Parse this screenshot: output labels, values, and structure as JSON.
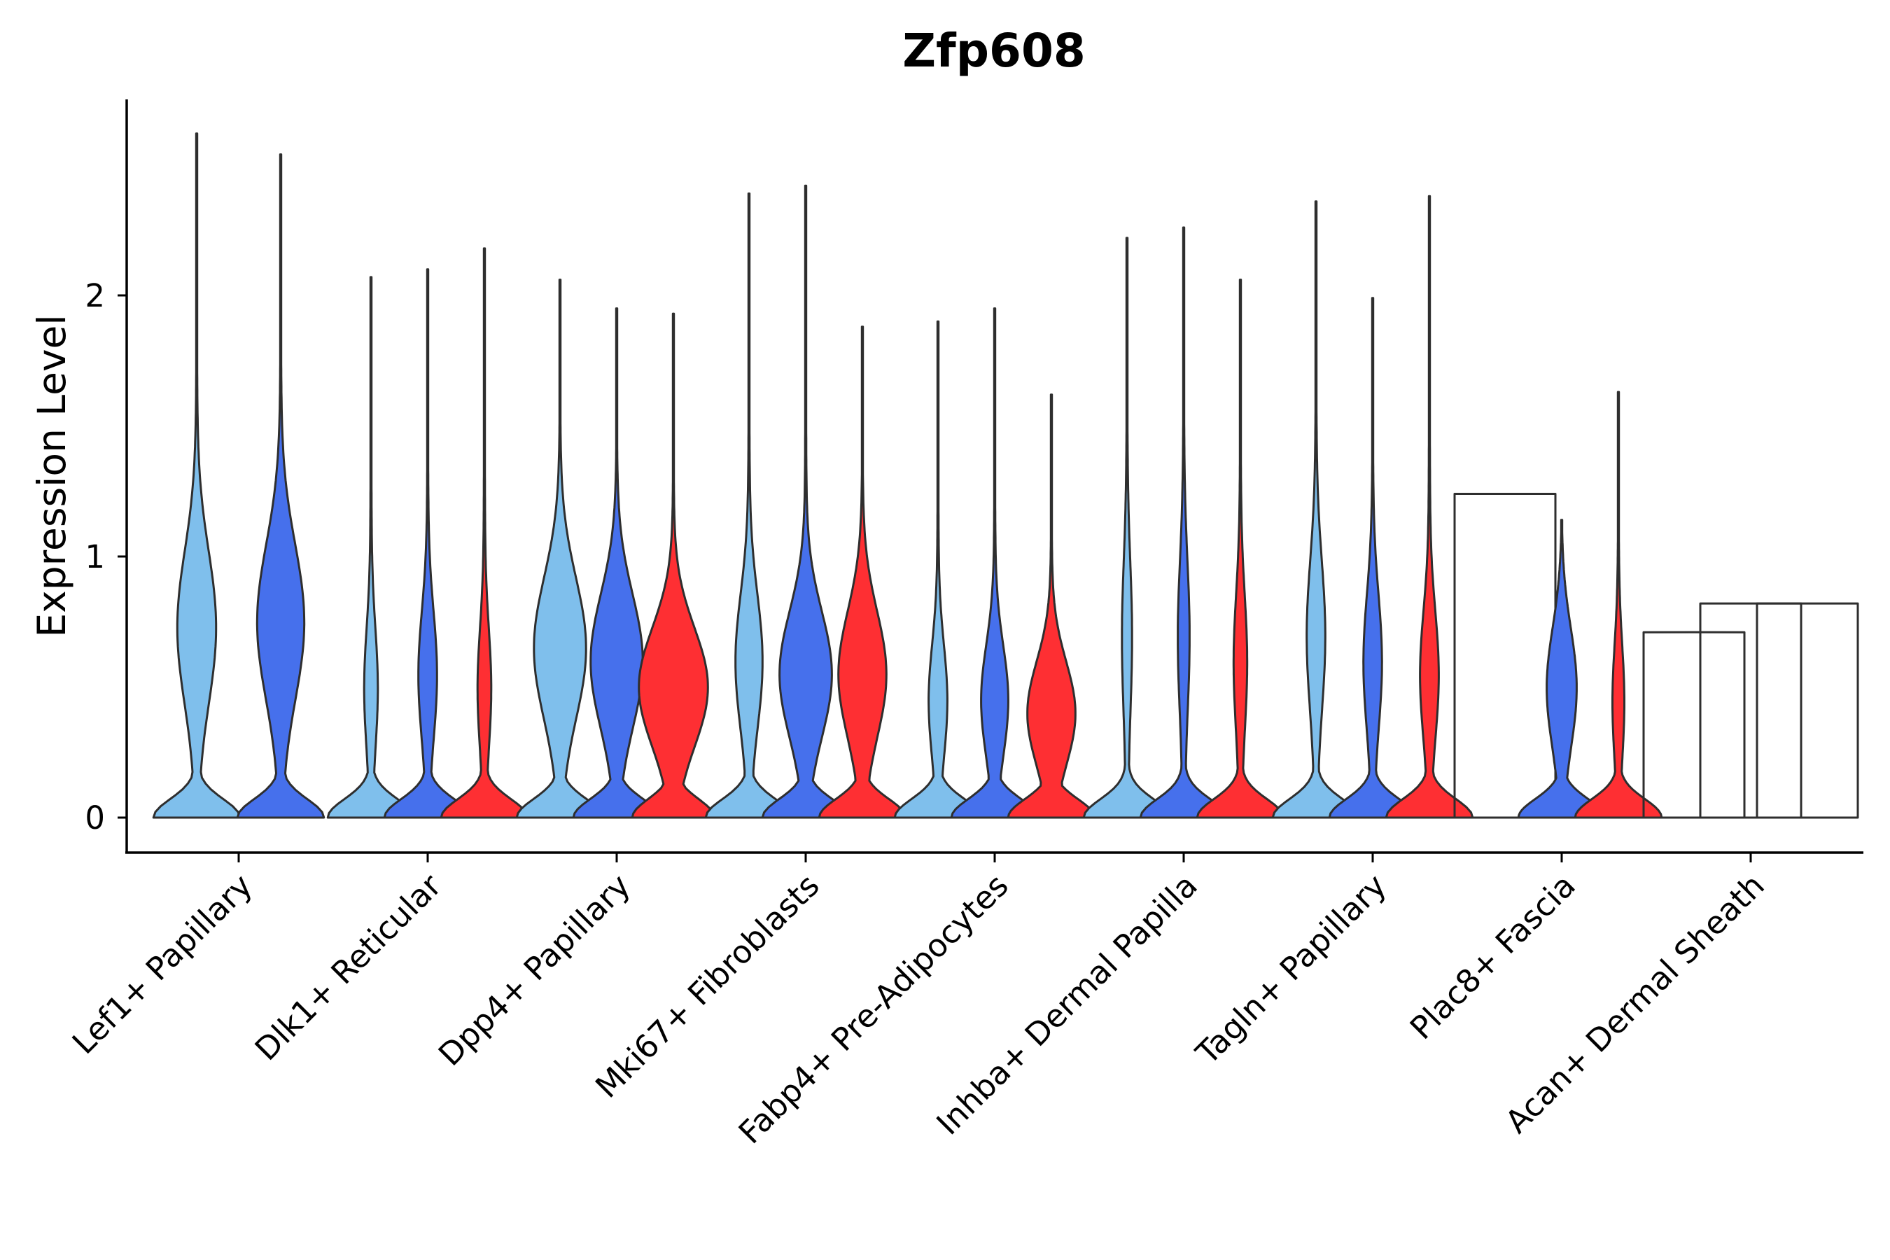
{
  "chart_data": {
    "type": "violin",
    "title": "Zfp608",
    "xlabel": "",
    "ylabel": "Expression Level",
    "ylim": [
      -0.13,
      2.78
    ],
    "yticks": [
      0,
      1,
      2
    ],
    "grid": false,
    "legend": "none",
    "series_colors": {
      "group_a": "#7fbfec",
      "group_b": "#4670ec",
      "group_c": "#fe2f33"
    },
    "categories": [
      "Lef1+ Papillary",
      "Dlk1+ Reticular",
      "Dpp4+ Papillary",
      "Mki67+ Fibroblasts",
      "Fabp4+ Pre-Adipocytes",
      "Inhba+ Dermal Papilla",
      "Tagln+ Papillary",
      "Plac8+ Fascia",
      "Acan+ Dermal Sheath"
    ],
    "violins": [
      {
        "category": "Lef1+ Papillary",
        "group": "group_a",
        "max": 2.62,
        "peak": 0.73,
        "width_peak": 0.44,
        "width_zero": 1.0
      },
      {
        "category": "Lef1+ Papillary",
        "group": "group_b",
        "max": 2.54,
        "peak": 0.75,
        "width_peak": 0.54,
        "width_zero": 1.0
      },
      {
        "category": "Dlk1+ Reticular",
        "group": "group_a",
        "max": 2.07,
        "peak": 0.5,
        "width_peak": 0.14,
        "width_zero": 1.0
      },
      {
        "category": "Dlk1+ Reticular",
        "group": "group_b",
        "max": 2.1,
        "peak": 0.55,
        "width_peak": 0.2,
        "width_zero": 1.0
      },
      {
        "category": "Dlk1+ Reticular",
        "group": "group_c",
        "max": 2.18,
        "peak": 0.5,
        "width_peak": 0.14,
        "width_zero": 1.0
      },
      {
        "category": "Dpp4+ Papillary",
        "group": "group_a",
        "max": 2.06,
        "peak": 0.65,
        "width_peak": 0.6,
        "width_zero": 1.0
      },
      {
        "category": "Dpp4+ Papillary",
        "group": "group_b",
        "max": 1.95,
        "peak": 0.6,
        "width_peak": 0.6,
        "width_zero": 1.0
      },
      {
        "category": "Dpp4+ Papillary",
        "group": "group_c",
        "max": 1.93,
        "peak": 0.5,
        "width_peak": 0.8,
        "width_zero": 0.95
      },
      {
        "category": "Mki67+ Fibroblasts",
        "group": "group_a",
        "max": 2.39,
        "peak": 0.6,
        "width_peak": 0.3,
        "width_zero": 1.0
      },
      {
        "category": "Mki67+ Fibroblasts",
        "group": "group_b",
        "max": 2.42,
        "peak": 0.55,
        "width_peak": 0.6,
        "width_zero": 1.0
      },
      {
        "category": "Mki67+ Fibroblasts",
        "group": "group_c",
        "max": 1.88,
        "peak": 0.55,
        "width_peak": 0.55,
        "width_zero": 1.0
      },
      {
        "category": "Fabp4+ Pre-Adipocytes",
        "group": "group_a",
        "max": 1.9,
        "peak": 0.45,
        "width_peak": 0.2,
        "width_zero": 1.0
      },
      {
        "category": "Fabp4+ Pre-Adipocytes",
        "group": "group_b",
        "max": 1.95,
        "peak": 0.45,
        "width_peak": 0.3,
        "width_zero": 1.0
      },
      {
        "category": "Fabp4+ Pre-Adipocytes",
        "group": "group_c",
        "max": 1.62,
        "peak": 0.4,
        "width_peak": 0.55,
        "width_zero": 1.0
      },
      {
        "category": "Inhba+ Dermal Papilla",
        "group": "group_a",
        "max": 2.22,
        "peak": 0.7,
        "width_peak": 0.1,
        "width_zero": 1.0
      },
      {
        "category": "Inhba+ Dermal Papilla",
        "group": "group_b",
        "max": 2.26,
        "peak": 0.7,
        "width_peak": 0.12,
        "width_zero": 1.0
      },
      {
        "category": "Inhba+ Dermal Papilla",
        "group": "group_c",
        "max": 2.06,
        "peak": 0.6,
        "width_peak": 0.14,
        "width_zero": 1.0
      },
      {
        "category": "Tagln+ Papillary",
        "group": "group_a",
        "max": 2.36,
        "peak": 0.7,
        "width_peak": 0.2,
        "width_zero": 1.0
      },
      {
        "category": "Tagln+ Papillary",
        "group": "group_b",
        "max": 1.99,
        "peak": 0.6,
        "width_peak": 0.2,
        "width_zero": 1.0
      },
      {
        "category": "Tagln+ Papillary",
        "group": "group_c",
        "max": 2.38,
        "peak": 0.55,
        "width_peak": 0.2,
        "width_zero": 1.0
      },
      {
        "category": "Plac8+ Fascia",
        "group": "group_a",
        "max": 1.24,
        "peak": 0.0,
        "width_peak": 0.0,
        "width_zero": 0.0
      },
      {
        "category": "Plac8+ Fascia",
        "group": "group_b",
        "max": 1.14,
        "peak": 0.5,
        "width_peak": 0.34,
        "width_zero": 1.0
      },
      {
        "category": "Plac8+ Fascia",
        "group": "group_c",
        "max": 1.63,
        "peak": 0.45,
        "width_peak": 0.12,
        "width_zero": 1.0
      },
      {
        "category": "Acan+ Dermal Sheath",
        "group": "group_a",
        "max": 0.71,
        "peak": 0.0,
        "width_peak": 0.0,
        "width_zero": 0.0
      },
      {
        "category": "Acan+ Dermal Sheath",
        "group": "group_b",
        "max": 0.82,
        "peak": 0.0,
        "width_peak": 0.0,
        "width_zero": 0.0
      },
      {
        "category": "Acan+ Dermal Sheath",
        "group": "group_c",
        "max": 0.82,
        "peak": 0.0,
        "width_peak": 0.0,
        "width_zero": 0.0
      }
    ]
  }
}
